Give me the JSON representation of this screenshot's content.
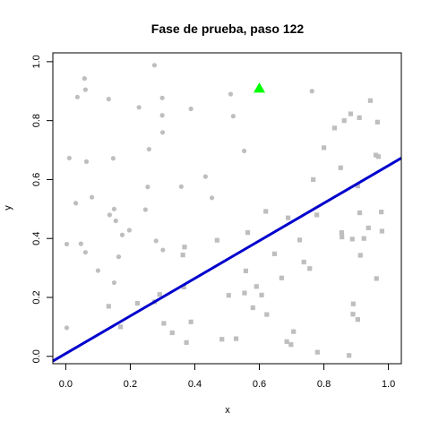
{
  "chart_data": {
    "type": "scatter",
    "title": "Fase de prueba, paso 122",
    "xlabel": "x",
    "ylabel": "y",
    "xlim": [
      -0.04,
      1.04
    ],
    "ylim": [
      -0.025,
      1.03
    ],
    "xticks": [
      0.0,
      0.2,
      0.4,
      0.6,
      0.8,
      1.0
    ],
    "xtick_labels": [
      "0.0",
      "0.2",
      "0.4",
      "0.6",
      "0.8",
      "1.0"
    ],
    "yticks": [
      0.0,
      0.2,
      0.4,
      0.6,
      0.8,
      1.0
    ],
    "ytick_labels": [
      "0.0",
      "0.2",
      "0.4",
      "0.6",
      "0.8",
      "1.0"
    ],
    "colors": {
      "points": "#bebebe",
      "line": "#0000cd",
      "highlight": "#00ff00"
    },
    "grid": false,
    "series": [
      {
        "marker": "circle",
        "points": [
          [
            0.003,
            0.381
          ],
          [
            0.003,
            0.097
          ],
          [
            0.011,
            0.673
          ],
          [
            0.031,
            0.52
          ],
          [
            0.036,
            0.88
          ],
          [
            0.047,
            0.382
          ],
          [
            0.058,
            0.943
          ],
          [
            0.061,
            0.905
          ],
          [
            0.061,
            0.353
          ],
          [
            0.064,
            0.661
          ],
          [
            0.081,
            0.54
          ],
          [
            0.1,
            0.291
          ],
          [
            0.133,
            0.873
          ],
          [
            0.136,
            0.48
          ],
          [
            0.147,
            0.672
          ],
          [
            0.15,
            0.5
          ],
          [
            0.15,
            0.25
          ],
          [
            0.155,
            0.46
          ],
          [
            0.164,
            0.338
          ],
          [
            0.175,
            0.412
          ],
          [
            0.197,
            0.428
          ],
          [
            0.227,
            0.845
          ],
          [
            0.247,
            0.498
          ],
          [
            0.254,
            0.575
          ],
          [
            0.258,
            0.703
          ],
          [
            0.275,
            0.988
          ],
          [
            0.28,
            0.392
          ],
          [
            0.299,
            0.818
          ],
          [
            0.299,
            0.877
          ],
          [
            0.3,
            0.76
          ],
          [
            0.301,
            0.361
          ],
          [
            0.358,
            0.576
          ],
          [
            0.388,
            0.84
          ],
          [
            0.433,
            0.61
          ],
          [
            0.453,
            0.538
          ],
          [
            0.511,
            0.89
          ],
          [
            0.519,
            0.815
          ],
          [
            0.553,
            0.697
          ],
          [
            0.763,
            0.9
          ]
        ]
      },
      {
        "marker": "square",
        "points": [
          [
            0.133,
            0.17
          ],
          [
            0.17,
            0.1
          ],
          [
            0.222,
            0.18
          ],
          [
            0.275,
            0.185
          ],
          [
            0.291,
            0.21
          ],
          [
            0.304,
            0.112
          ],
          [
            0.33,
            0.08
          ],
          [
            0.363,
            0.344
          ],
          [
            0.366,
            0.235
          ],
          [
            0.368,
            0.371
          ],
          [
            0.374,
            0.047
          ],
          [
            0.388,
            0.117
          ],
          [
            0.469,
            0.394
          ],
          [
            0.484,
            0.058
          ],
          [
            0.505,
            0.207
          ],
          [
            0.528,
            0.06
          ],
          [
            0.554,
            0.215
          ],
          [
            0.558,
            0.29
          ],
          [
            0.564,
            0.42
          ],
          [
            0.58,
            0.165
          ],
          [
            0.591,
            0.237
          ],
          [
            0.607,
            0.208
          ],
          [
            0.62,
            0.492
          ],
          [
            0.623,
            0.142
          ],
          [
            0.647,
            0.348
          ],
          [
            0.669,
            0.266
          ],
          [
            0.685,
            0.05
          ],
          [
            0.689,
            0.47
          ],
          [
            0.698,
            0.04
          ],
          [
            0.706,
            0.084
          ],
          [
            0.725,
            0.395
          ],
          [
            0.738,
            0.32
          ],
          [
            0.756,
            0.298
          ],
          [
            0.767,
            0.6
          ],
          [
            0.778,
            0.48
          ],
          [
            0.78,
            0.014
          ],
          [
            0.8,
            0.708
          ],
          [
            0.833,
            0.775
          ],
          [
            0.852,
            0.64
          ],
          [
            0.855,
            0.42
          ],
          [
            0.856,
            0.405
          ],
          [
            0.863,
            0.8
          ],
          [
            0.878,
            0.003
          ],
          [
            0.883,
            0.823
          ],
          [
            0.888,
            0.398
          ],
          [
            0.89,
            0.143
          ],
          [
            0.891,
            0.178
          ],
          [
            0.905,
            0.125
          ],
          [
            0.905,
            0.578
          ],
          [
            0.91,
            0.81
          ],
          [
            0.911,
            0.487
          ],
          [
            0.913,
            0.343
          ],
          [
            0.924,
            0.4
          ],
          [
            0.938,
            0.436
          ],
          [
            0.944,
            0.868
          ],
          [
            0.961,
            0.683
          ],
          [
            0.963,
            0.264
          ],
          [
            0.966,
            0.795
          ],
          [
            0.969,
            0.678
          ],
          [
            0.978,
            0.49
          ],
          [
            0.98,
            0.425
          ]
        ]
      },
      {
        "marker": "triangle",
        "points": [
          [
            0.6,
            0.91
          ]
        ]
      }
    ],
    "line": {
      "x": [
        -0.04,
        1.04
      ],
      "y": [
        -0.016,
        0.673
      ]
    }
  }
}
